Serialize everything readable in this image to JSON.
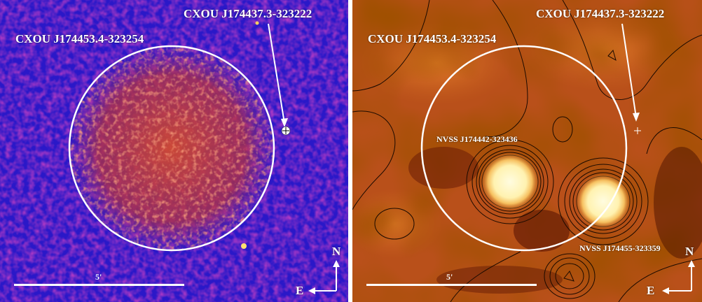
{
  "left_panel": {
    "source_label": "CXOU J174453.4-323254",
    "point_source_label": "CXOU J174437.3-323222",
    "scale_label": "5'",
    "compass_north": "N",
    "compass_east": "E",
    "colors": {
      "background": "#2a18c8",
      "emission": "#c43a2e",
      "overlay": "#ffffff"
    }
  },
  "right_panel": {
    "source_label": "CXOU J174453.4-323254",
    "point_source_label": "CXOU J174437.3-323222",
    "radio_source_1": "NVSS J174442-323436",
    "radio_source_2": "NVSS J174455-323359",
    "scale_label": "5'",
    "compass_north": "N",
    "compass_east": "E",
    "colors": {
      "background": "#b9501a",
      "bright": "#fff6c8",
      "contour": "#1a0a00",
      "overlay": "#ffffff"
    }
  }
}
